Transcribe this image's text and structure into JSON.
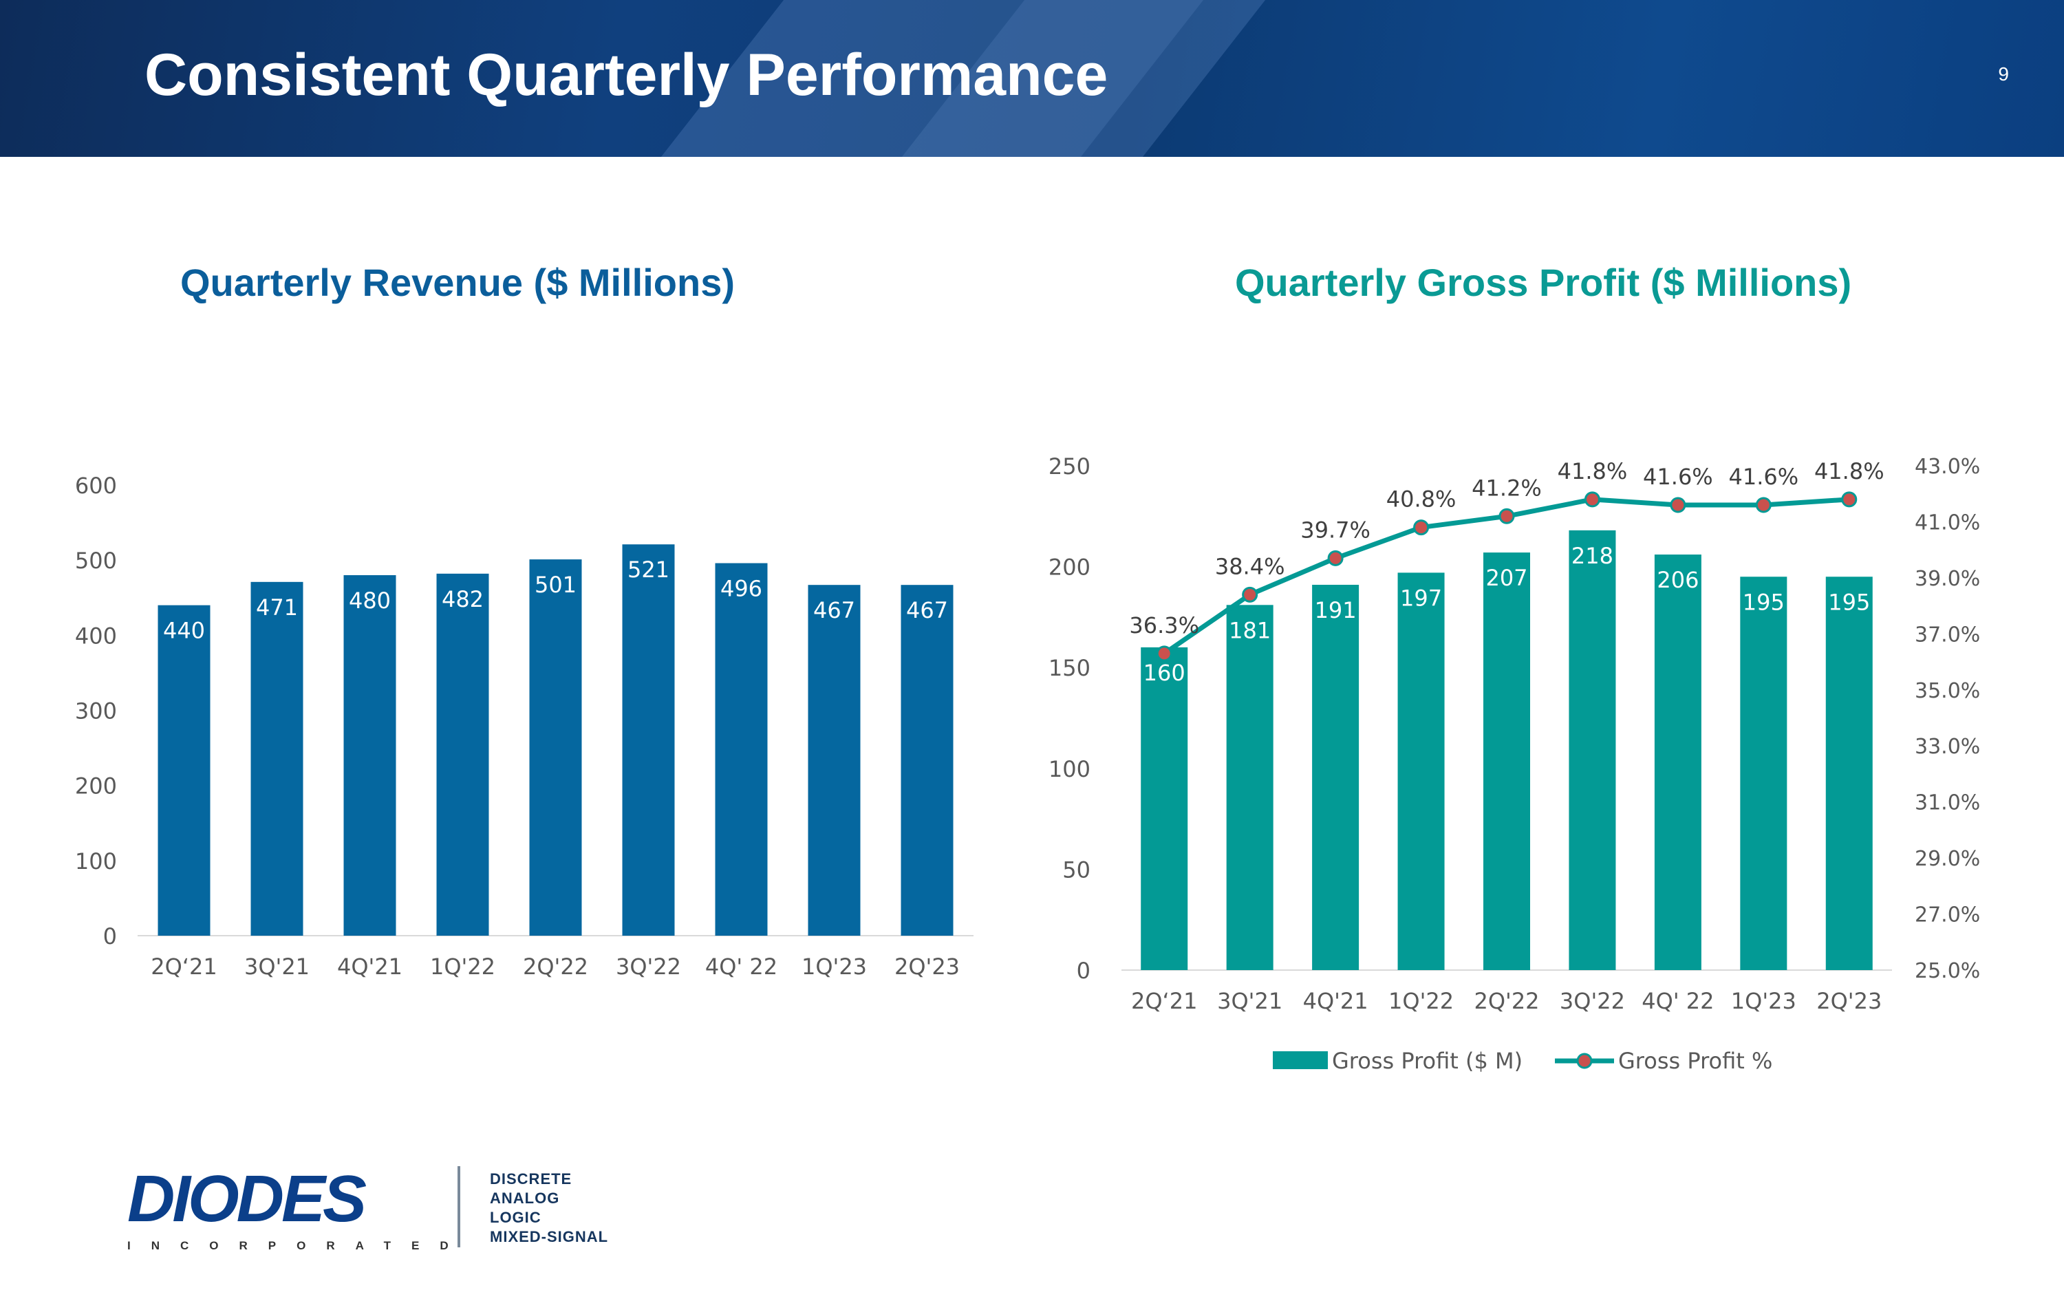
{
  "header": {
    "title": "Consistent Quarterly Performance",
    "page_number": "9"
  },
  "chart_data": [
    {
      "id": "revenue",
      "type": "bar",
      "title": "Quarterly Revenue ($ Millions)",
      "categories": [
        "2Q‘21",
        "3Q'21",
        "4Q'21",
        "1Q'22",
        "2Q'22",
        "3Q'22",
        "4Q' 22",
        "1Q'23",
        "2Q'23"
      ],
      "values": [
        440,
        471,
        480,
        482,
        501,
        521,
        496,
        467,
        467
      ],
      "ylim": [
        0,
        600
      ],
      "yticks": [
        0,
        100,
        200,
        300,
        400,
        500,
        600
      ],
      "grid": false,
      "color": "#05679f"
    },
    {
      "id": "gross_profit",
      "type": "bar+line",
      "title": "Quarterly Gross Profit ($ Millions)",
      "categories": [
        "2Q‘21",
        "3Q'21",
        "4Q'21",
        "1Q'22",
        "2Q'22",
        "3Q'22",
        "4Q' 22",
        "1Q'23",
        "2Q'23"
      ],
      "series": [
        {
          "name": "Gross Profit ($ M)",
          "kind": "bar",
          "axis": "left",
          "values": [
            160,
            181,
            191,
            197,
            207,
            218,
            206,
            195,
            195
          ],
          "color": "#039a95"
        },
        {
          "name": "Gross Profit %",
          "kind": "line",
          "axis": "right",
          "values": [
            36.3,
            38.4,
            39.7,
            40.8,
            41.2,
            41.8,
            41.6,
            41.6,
            41.8
          ],
          "labels": [
            "36.3%",
            "38.4%",
            "39.7%",
            "40.8%",
            "41.2%",
            "41.8%",
            "41.6%",
            "41.6%",
            "41.8%"
          ],
          "color": "#039a95",
          "marker_color": "#c9514d"
        }
      ],
      "y_left": {
        "lim": [
          0,
          250
        ],
        "ticks": [
          0,
          50,
          100,
          150,
          200,
          250
        ]
      },
      "y_right": {
        "lim": [
          25,
          43
        ],
        "ticks": [
          25,
          27,
          29,
          31,
          33,
          35,
          37,
          39,
          41,
          43
        ],
        "tick_labels": [
          "25.0%",
          "27.0%",
          "29.0%",
          "31.0%",
          "33.0%",
          "35.0%",
          "37.0%",
          "39.0%",
          "41.0%",
          "43.0%"
        ]
      },
      "legend": {
        "position": "bottom"
      },
      "grid": false
    }
  ],
  "logo": {
    "name": "DIODES",
    "sub": "INCORPORATED",
    "tagline": [
      "DISCRETE",
      "ANALOG",
      "LOGIC",
      "MIXED-SIGNAL"
    ]
  }
}
